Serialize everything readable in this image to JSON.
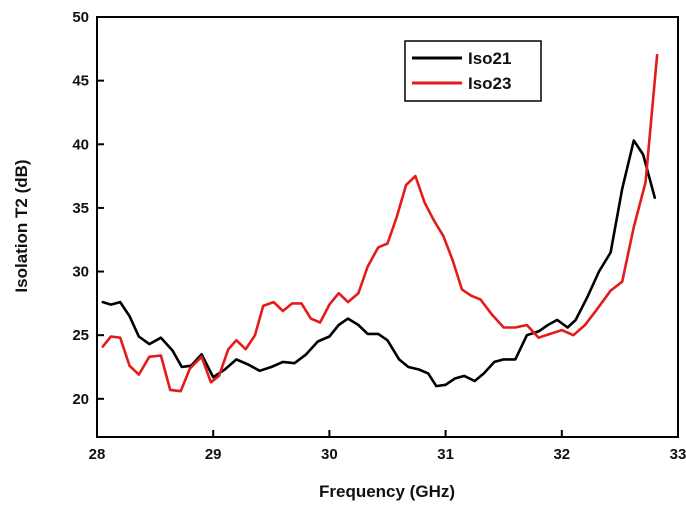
{
  "chart_data": {
    "type": "line",
    "xlabel": "Frequency (GHz)",
    "ylabel": "Isolation T2 (dB)",
    "xlim": [
      28,
      33
    ],
    "ylim": [
      17,
      50
    ],
    "xticks": [
      28,
      29,
      30,
      31,
      32,
      33
    ],
    "yticks": [
      20,
      25,
      30,
      35,
      40,
      45,
      50
    ],
    "grid": false,
    "legend": "top-right",
    "series": [
      {
        "name": "Iso21",
        "color": "#000000",
        "x": [
          28.05,
          28.12,
          28.2,
          28.28,
          28.36,
          28.45,
          28.55,
          28.65,
          28.73,
          28.81,
          28.9,
          29.0,
          29.1,
          29.2,
          29.3,
          29.4,
          29.5,
          29.6,
          29.7,
          29.8,
          29.9,
          30.0,
          30.08,
          30.16,
          30.25,
          30.33,
          30.42,
          30.5,
          30.6,
          30.68,
          30.77,
          30.85,
          30.92,
          31.0,
          31.08,
          31.16,
          31.25,
          31.33,
          31.42,
          31.5,
          31.6,
          31.7,
          31.8,
          31.88,
          31.96,
          32.05,
          32.12,
          32.22,
          32.32,
          32.42,
          32.52,
          32.62,
          32.7,
          32.8
        ],
        "values": [
          27.6,
          27.4,
          27.6,
          26.5,
          24.9,
          24.3,
          24.8,
          23.8,
          22.5,
          22.6,
          23.5,
          21.7,
          22.3,
          23.1,
          22.7,
          22.2,
          22.5,
          22.9,
          22.8,
          23.5,
          24.5,
          24.9,
          25.8,
          26.3,
          25.8,
          25.1,
          25.1,
          24.6,
          23.1,
          22.5,
          22.3,
          22.0,
          21.0,
          21.1,
          21.6,
          21.8,
          21.4,
          22.0,
          22.9,
          23.1,
          23.1,
          25.0,
          25.3,
          25.8,
          26.2,
          25.6,
          26.2,
          28.0,
          30.0,
          31.5,
          36.5,
          40.3,
          39.2,
          35.8
        ]
      },
      {
        "name": "Iso23",
        "color": "#e41b1b",
        "x": [
          28.05,
          28.12,
          28.2,
          28.28,
          28.36,
          28.45,
          28.55,
          28.63,
          28.72,
          28.8,
          28.9,
          28.98,
          29.05,
          29.13,
          29.2,
          29.28,
          29.36,
          29.43,
          29.52,
          29.6,
          29.68,
          29.76,
          29.84,
          29.92,
          30.0,
          30.08,
          30.16,
          30.25,
          30.33,
          30.42,
          30.5,
          30.58,
          30.66,
          30.74,
          30.82,
          30.9,
          30.98,
          31.06,
          31.14,
          31.22,
          31.3,
          31.4,
          31.5,
          31.6,
          31.7,
          31.8,
          31.9,
          32.0,
          32.1,
          32.2,
          32.3,
          32.42,
          32.52,
          32.62,
          32.72,
          32.82
        ],
        "values": [
          24.1,
          24.9,
          24.8,
          22.6,
          21.9,
          23.3,
          23.4,
          20.7,
          20.6,
          22.4,
          23.3,
          21.3,
          21.8,
          23.9,
          24.6,
          23.9,
          25.0,
          27.3,
          27.6,
          26.9,
          27.5,
          27.5,
          26.3,
          26.0,
          27.4,
          28.3,
          27.6,
          28.3,
          30.4,
          31.9,
          32.2,
          34.3,
          36.8,
          37.5,
          35.4,
          34.0,
          32.8,
          30.9,
          28.6,
          28.1,
          27.8,
          26.6,
          25.6,
          25.6,
          25.8,
          24.8,
          25.1,
          25.4,
          25.0,
          25.8,
          27.0,
          28.5,
          29.2,
          33.5,
          37.0,
          47.0
        ]
      }
    ]
  }
}
